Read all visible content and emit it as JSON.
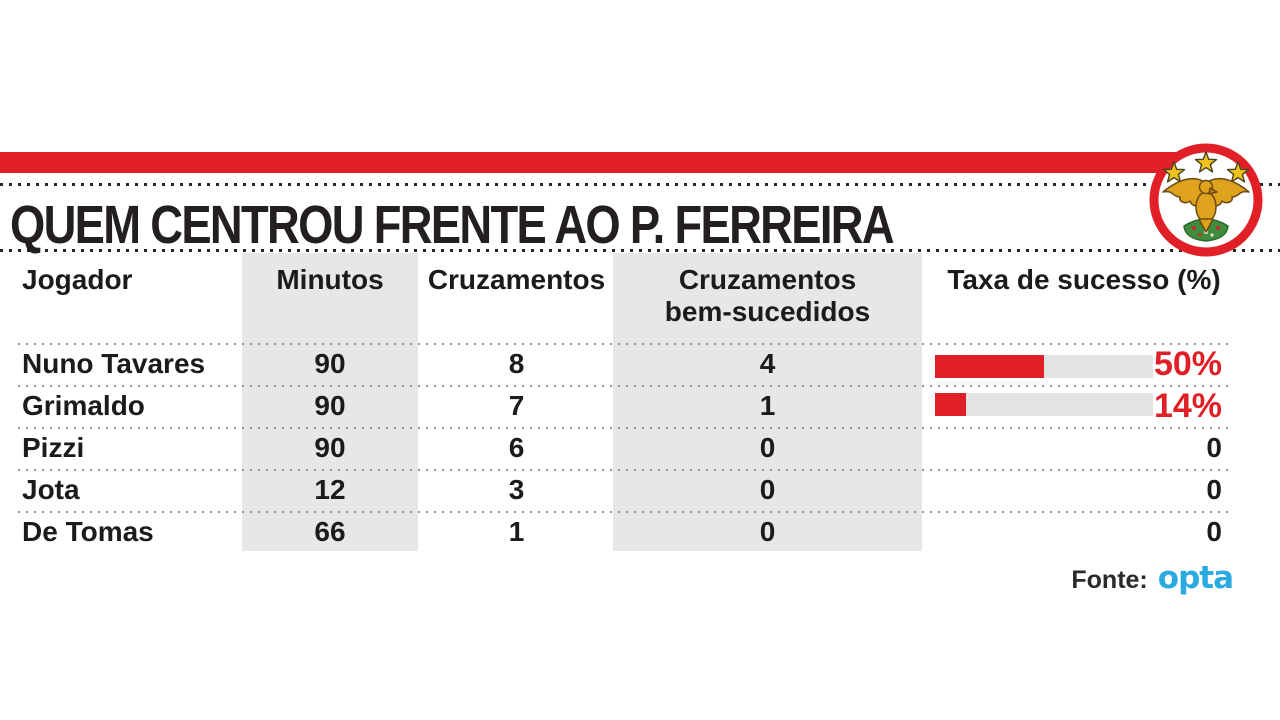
{
  "title": "QUEM CENTROU FRENTE AO P. FERREIRA",
  "logo": {
    "name": "benfica-crest"
  },
  "table": {
    "headers": {
      "player": "Jogador",
      "minutes": "Minutos",
      "crosses": "Cruzamentos",
      "successful_line1": "Cruzamentos",
      "successful_line2": "bem-sucedidos",
      "success_rate": "Taxa de sucesso (%)"
    },
    "rows": [
      {
        "player": "Nuno Tavares",
        "minutes": "90",
        "crosses": "8",
        "successful": "4",
        "rate_label": "50%",
        "rate_pct": 50
      },
      {
        "player": "Grimaldo",
        "minutes": "90",
        "crosses": "7",
        "successful": "1",
        "rate_label": "14%",
        "rate_pct": 14
      },
      {
        "player": "Pizzi",
        "minutes": "90",
        "crosses": "6",
        "successful": "0",
        "rate_label": "0",
        "rate_pct": 0
      },
      {
        "player": "Jota",
        "minutes": "12",
        "crosses": "3",
        "successful": "0",
        "rate_label": "0",
        "rate_pct": 0
      },
      {
        "player": "De Tomas",
        "minutes": "66",
        "crosses": "1",
        "successful": "0",
        "rate_label": "0",
        "rate_pct": 0
      }
    ]
  },
  "footer": {
    "source_label": "Fonte:",
    "source_name": "opta"
  },
  "colors": {
    "accent_red": "#e01f26",
    "bar_track": "#e3e3e3",
    "column_gray": "#e7e7e9",
    "opta_cyan": "#29abe2",
    "star_gold": "#f2c11c",
    "eagle_gold": "#dfa21d",
    "mound_green": "#3e8c3c"
  },
  "chart_data": {
    "type": "table",
    "title": "QUEM CENTROU FRENTE AO P. FERREIRA",
    "columns": [
      "Jogador",
      "Minutos",
      "Cruzamentos",
      "Cruzamentos bem-sucedidos",
      "Taxa de sucesso (%)"
    ],
    "rows": [
      [
        "Nuno Tavares",
        90,
        8,
        4,
        50
      ],
      [
        "Grimaldo",
        90,
        7,
        1,
        14
      ],
      [
        "Pizzi",
        90,
        6,
        0,
        0
      ],
      [
        "Jota",
        12,
        3,
        0,
        0
      ],
      [
        "De Tomas",
        66,
        1,
        0,
        0
      ]
    ],
    "embedded_bar": {
      "type": "bar",
      "categories": [
        "Nuno Tavares",
        "Grimaldo",
        "Pizzi",
        "Jota",
        "De Tomas"
      ],
      "values": [
        50,
        14,
        0,
        0,
        0
      ],
      "xlabel": "Taxa de sucesso (%)",
      "xlim": [
        0,
        100
      ],
      "bar_color": "#e01f26",
      "track_color": "#e3e3e3",
      "source": "Opta"
    }
  }
}
